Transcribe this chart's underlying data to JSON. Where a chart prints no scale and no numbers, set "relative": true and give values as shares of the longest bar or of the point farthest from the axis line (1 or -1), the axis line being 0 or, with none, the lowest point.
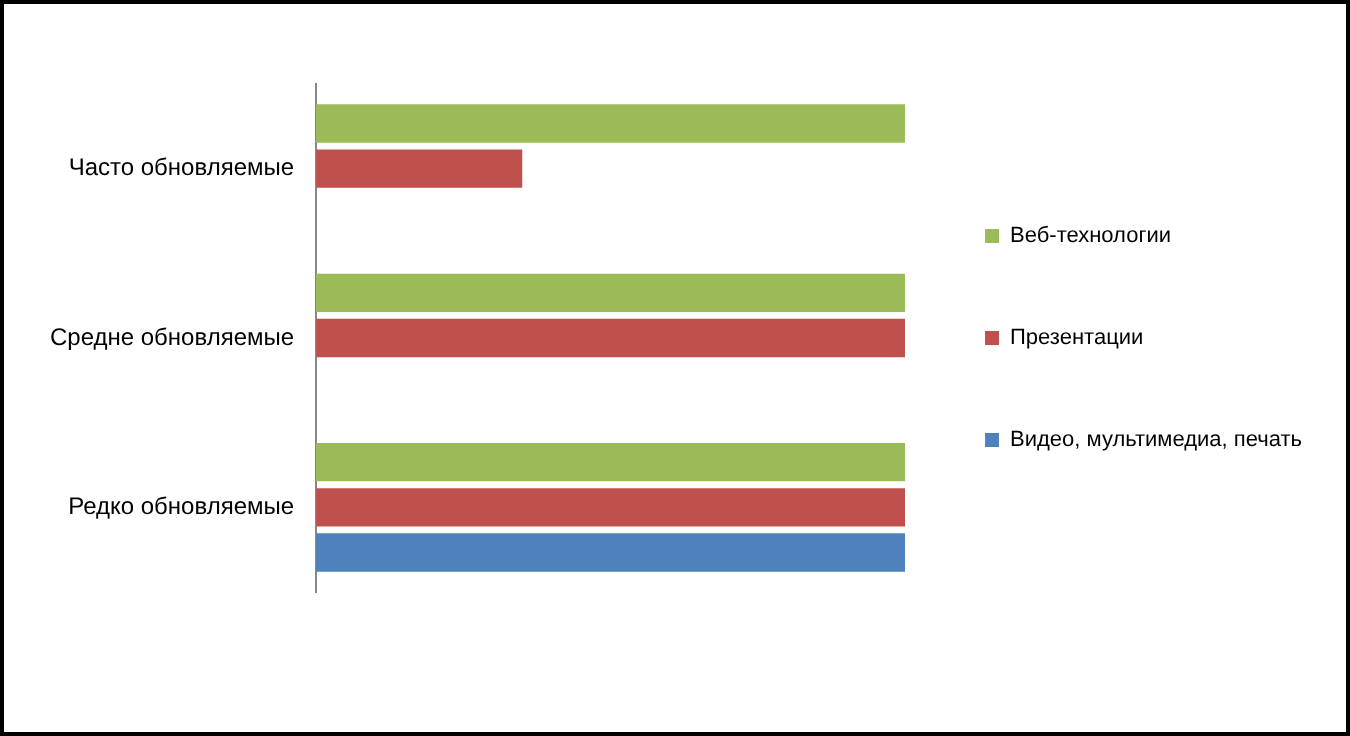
{
  "chart_data": {
    "type": "bar",
    "orientation": "horizontal",
    "relative": true,
    "legend": "right",
    "categories": [
      "Часто обновляемые",
      "Средне обновляемые",
      "Редко обновляемые"
    ],
    "series": [
      {
        "name": "Веб-технологии",
        "color": "#9bbb59",
        "values": [
          1,
          1,
          1
        ]
      },
      {
        "name": "Презентации",
        "color": "#c0504d",
        "values": [
          0.35,
          1,
          1
        ]
      },
      {
        "name": "Видео, мультимедиа, печать",
        "color": "#4f81bd",
        "values": [
          0,
          0,
          1
        ]
      }
    ]
  }
}
